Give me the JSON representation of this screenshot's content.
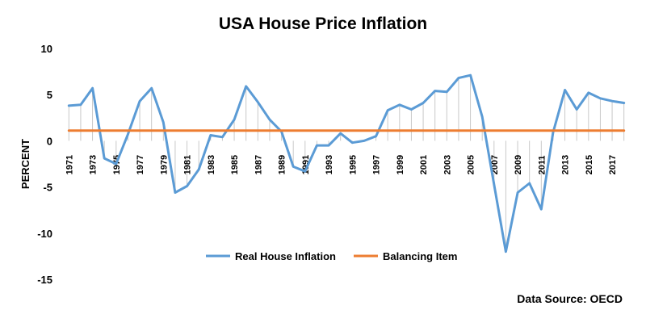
{
  "chart_data": {
    "type": "line",
    "title": "USA House Price Inflation",
    "ylabel": "PERCENT",
    "xlabel": "",
    "ylim": [
      -15,
      10
    ],
    "yticks": [
      10,
      5,
      0,
      -5,
      -10,
      -15
    ],
    "x": [
      1971,
      1972,
      1973,
      1974,
      1975,
      1976,
      1977,
      1978,
      1979,
      1980,
      1981,
      1982,
      1983,
      1984,
      1985,
      1986,
      1987,
      1988,
      1989,
      1990,
      1991,
      1992,
      1993,
      1994,
      1995,
      1996,
      1997,
      1998,
      1999,
      2000,
      2001,
      2002,
      2003,
      2004,
      2005,
      2006,
      2007,
      2008,
      2009,
      2010,
      2011,
      2012,
      2013,
      2014,
      2015,
      2016,
      2017,
      2018
    ],
    "x_tick_labels": [
      "1971",
      "1973",
      "1975",
      "1977",
      "1979",
      "1981",
      "1983",
      "1985",
      "1987",
      "1989",
      "1991",
      "1993",
      "1995",
      "1997",
      "1999",
      "2001",
      "2003",
      "2005",
      "2007",
      "2009",
      "2011",
      "2013",
      "2015",
      "2017"
    ],
    "series": [
      {
        "name": "Real House Inflation",
        "color": "#5b9bd5",
        "values": [
          3.8,
          3.9,
          5.7,
          -1.9,
          -2.5,
          0.7,
          4.3,
          5.7,
          2.0,
          -5.6,
          -4.9,
          -3.1,
          0.6,
          0.4,
          2.3,
          5.9,
          4.2,
          2.3,
          1.0,
          -2.8,
          -3.3,
          -0.5,
          -0.5,
          0.8,
          -0.2,
          0.0,
          0.5,
          3.3,
          3.9,
          3.4,
          4.1,
          5.4,
          5.3,
          6.8,
          7.1,
          2.6,
          -4.7,
          -12.0,
          -5.6,
          -4.6,
          -7.4,
          0.9,
          5.5,
          3.4,
          5.2,
          4.6,
          4.3,
          4.1
        ]
      },
      {
        "name": "Balancing Item",
        "color": "#ed7d31",
        "values": [
          1.1,
          1.1,
          1.1,
          1.1,
          1.1,
          1.1,
          1.1,
          1.1,
          1.1,
          1.1,
          1.1,
          1.1,
          1.1,
          1.1,
          1.1,
          1.1,
          1.1,
          1.1,
          1.1,
          1.1,
          1.1,
          1.1,
          1.1,
          1.1,
          1.1,
          1.1,
          1.1,
          1.1,
          1.1,
          1.1,
          1.1,
          1.1,
          1.1,
          1.1,
          1.1,
          1.1,
          1.1,
          1.1,
          1.1,
          1.1,
          1.1,
          1.1,
          1.1,
          1.1,
          1.1,
          1.1,
          1.1,
          1.1
        ]
      }
    ],
    "drop_lines": true,
    "grid": false,
    "legend_placement": "bottom-center"
  },
  "footer": {
    "source": "Data Source: OECD"
  }
}
